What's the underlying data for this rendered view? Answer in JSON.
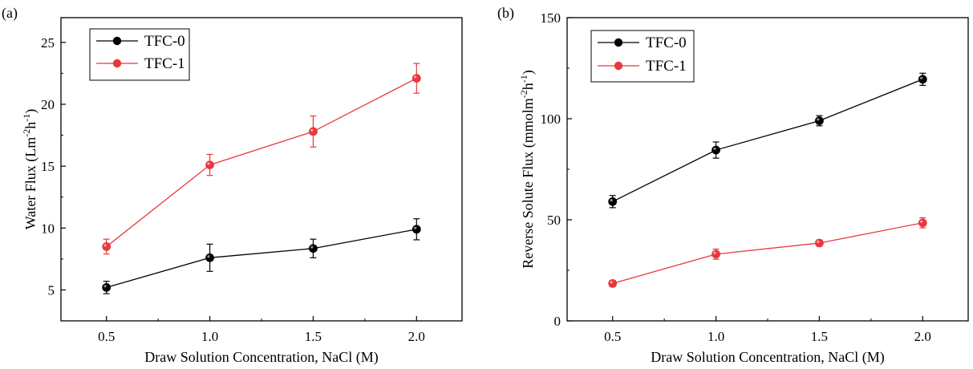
{
  "chart_data": [
    {
      "type": "line",
      "panel_label": "(a)",
      "xlabel": "Draw Solution Concentration, NaCl (M)",
      "ylabel": "Water Flux (Lm^-2h^-1)",
      "ylabel_main": "Water Flux (Lm",
      "ylabel_sup1": "-2",
      "ylabel_mid": "h",
      "ylabel_sup2": "-1",
      "ylabel_end": ")",
      "x": [
        0.5,
        1.0,
        1.5,
        2.0
      ],
      "x_ticks": [
        "0.5",
        "1.0",
        "1.5",
        "2.0"
      ],
      "xlim": [
        0.28,
        2.22
      ],
      "ylim": [
        2.5,
        27
      ],
      "y_ticks": [
        "5",
        "10",
        "15",
        "20",
        "25"
      ],
      "grid": false,
      "legend_position": "top-left",
      "series": [
        {
          "name": "TFC-0",
          "color": "#000000",
          "values": [
            5.2,
            7.6,
            8.35,
            9.9
          ],
          "errors": [
            0.5,
            1.1,
            0.75,
            0.85
          ]
        },
        {
          "name": "TFC-1",
          "color": "#e8383d",
          "values": [
            8.5,
            15.1,
            17.8,
            22.1
          ],
          "errors": [
            0.6,
            0.85,
            1.25,
            1.2
          ]
        }
      ]
    },
    {
      "type": "line",
      "panel_label": "(b)",
      "xlabel": "Draw Solution Concentration, NaCl (M)",
      "ylabel": "Reverse Solute Flux (mmolm^-2h^-1)",
      "ylabel_main": "Reverse Solute Flux (mmolm",
      "ylabel_sup1": "-2",
      "ylabel_mid": "h",
      "ylabel_sup2": "-1",
      "ylabel_end": ")",
      "x": [
        0.5,
        1.0,
        1.5,
        2.0
      ],
      "x_ticks": [
        "0.5",
        "1.0",
        "1.5",
        "2.0"
      ],
      "xlim": [
        0.28,
        2.22
      ],
      "ylim": [
        0,
        150
      ],
      "y_ticks": [
        "0",
        "50",
        "100",
        "150"
      ],
      "grid": false,
      "legend_position": "top-left",
      "series": [
        {
          "name": "TFC-0",
          "color": "#000000",
          "values": [
            59,
            84.5,
            99,
            119.5
          ],
          "errors": [
            3,
            4,
            2.5,
            3
          ]
        },
        {
          "name": "TFC-1",
          "color": "#e8383d",
          "values": [
            18.5,
            33,
            38.5,
            48.5
          ],
          "errors": [
            1.5,
            2.5,
            1.5,
            2.5
          ]
        }
      ]
    }
  ]
}
